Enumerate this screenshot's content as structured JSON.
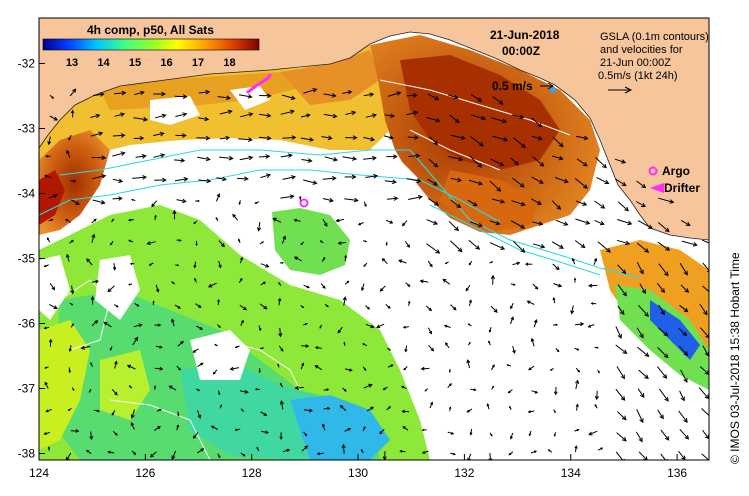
{
  "colorbar": {
    "title": "4h comp, p50, All Sats",
    "ticks": [
      "13",
      "14",
      "15",
      "16",
      "17",
      "18"
    ]
  },
  "header": {
    "date": "21-Jun-2018",
    "time": "00:00Z"
  },
  "gsla_note": {
    "line1": "GSLA (0.1m contours)",
    "line2": "and velocities for",
    "line3": "21-Jun 00:00Z",
    "line4": "0.5m/s (1kt 24h)"
  },
  "velocity_label": "0.5 m/s",
  "legend": {
    "argo": "Argo",
    "drifter": "Drifter"
  },
  "credit": "© IMOS 03-Jul-2018 15:38 Hobart Time",
  "axes": {
    "x_ticks": [
      "124",
      "126",
      "128",
      "130",
      "132",
      "134",
      "136"
    ],
    "y_ticks": [
      "-32",
      "-33",
      "-34",
      "-35",
      "-36",
      "-37",
      "-38"
    ],
    "xlim": [
      124,
      136.6
    ],
    "ylim": [
      -38.1,
      -31.3
    ]
  },
  "colors": {
    "land": "#f6c59c",
    "ocean_blank": "#ffffff",
    "contour": "#2dd8e8",
    "argo_marker": "#ff2bff",
    "drifter_marker": "#ff2bff"
  },
  "markers": {
    "argo": [
      {
        "lon": 128.95,
        "lat": -34.1
      }
    ],
    "drifter_track": [
      {
        "lon": 127.9,
        "lat": -32.3
      },
      {
        "lon": 128.25,
        "lat": -32.15
      }
    ]
  }
}
